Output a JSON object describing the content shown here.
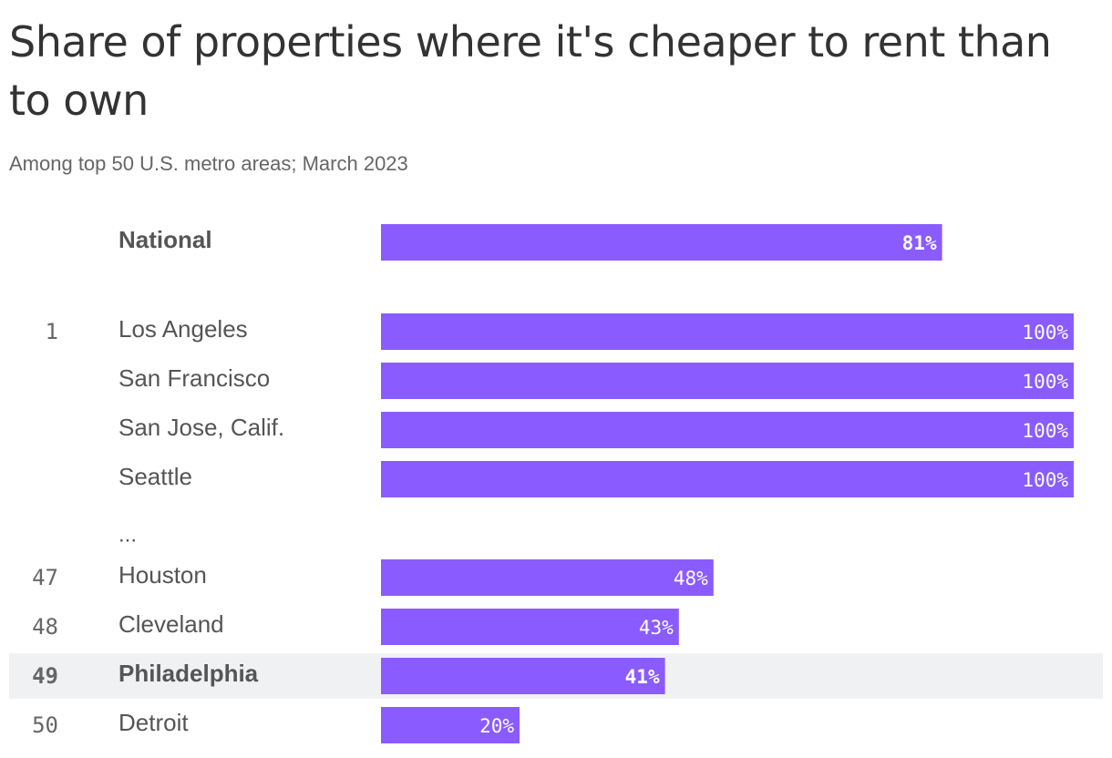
{
  "title": "Share of properties where it's cheaper to rent than to own",
  "subtitle": "Among top 50 U.S. metro areas; March 2023",
  "colors": {
    "bar": "#8a5cff",
    "highlight_row": "#f0f1f3",
    "text": "#333333",
    "muted": "#666666"
  },
  "chart_data": {
    "type": "bar",
    "orientation": "horizontal",
    "title": "Share of properties where it's cheaper to rent than to own",
    "subtitle": "Among top 50 U.S. metro areas; March 2023",
    "xlim": [
      0,
      100
    ],
    "grid": false,
    "legend": "none",
    "unit": "%",
    "ellipsis_label": "...",
    "rows": [
      {
        "rank": "",
        "label": "National",
        "value": 81,
        "value_label": "81%",
        "bold": true,
        "highlight": false
      },
      {
        "rank": "1",
        "label": "Los Angeles",
        "value": 100,
        "value_label": "100%",
        "bold": false,
        "highlight": false
      },
      {
        "rank": "",
        "label": "San Francisco",
        "value": 100,
        "value_label": "100%",
        "bold": false,
        "highlight": false
      },
      {
        "rank": "",
        "label": "San Jose, Calif.",
        "value": 100,
        "value_label": "100%",
        "bold": false,
        "highlight": false
      },
      {
        "rank": "",
        "label": "Seattle",
        "value": 100,
        "value_label": "100%",
        "bold": false,
        "highlight": false
      },
      {
        "rank": "47",
        "label": "Houston",
        "value": 48,
        "value_label": "48%",
        "bold": false,
        "highlight": false
      },
      {
        "rank": "48",
        "label": "Cleveland",
        "value": 43,
        "value_label": "43%",
        "bold": false,
        "highlight": false
      },
      {
        "rank": "49",
        "label": "Philadelphia",
        "value": 41,
        "value_label": "41%",
        "bold": true,
        "highlight": true
      },
      {
        "rank": "50",
        "label": "Detroit",
        "value": 20,
        "value_label": "20%",
        "bold": false,
        "highlight": false
      }
    ]
  }
}
